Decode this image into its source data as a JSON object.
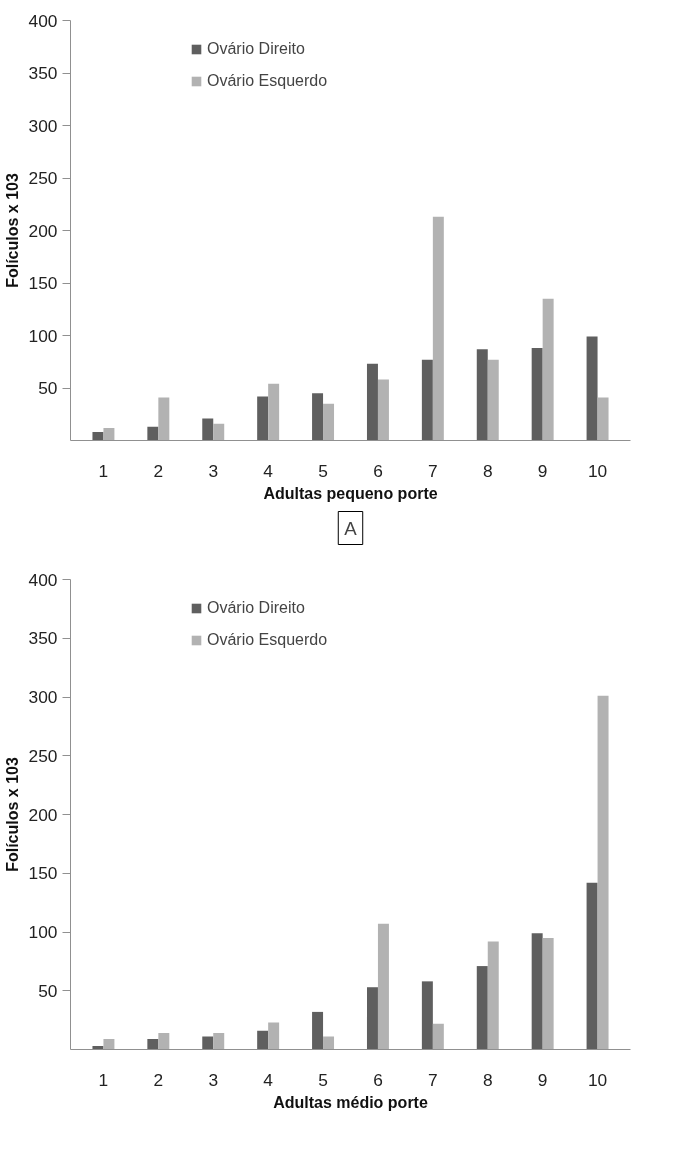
{
  "chart_data": [
    {
      "type": "bar",
      "xlabel": "Adultas pequeno porte",
      "ylabel": "Folículos x 103",
      "categories": [
        "1",
        "2",
        "3",
        "4",
        "5",
        "6",
        "7",
        "8",
        "9",
        "10"
      ],
      "series": [
        {
          "name": "Ovário Direito",
          "color": "#5f5f5f",
          "values": [
            8,
            13,
            21,
            42,
            45,
            73,
            77,
            87,
            88,
            99
          ]
        },
        {
          "name": "Ovário Esquerdo",
          "color": "#b2b2b2",
          "values": [
            12,
            41,
            16,
            54,
            35,
            58,
            213,
            77,
            135,
            41
          ]
        }
      ],
      "ylim": [
        0,
        400
      ],
      "yticks": [
        50,
        100,
        150,
        200,
        250,
        300,
        350,
        400
      ],
      "grid": false,
      "legend": "top left",
      "annotations": [
        "A"
      ]
    },
    {
      "type": "bar",
      "xlabel": "Adultas médio porte",
      "ylabel": "Folículos x 103",
      "categories": [
        "1",
        "2",
        "3",
        "4",
        "5",
        "6",
        "7",
        "8",
        "9",
        "10"
      ],
      "series": [
        {
          "name": "Ovário Direito",
          "color": "#5f5f5f",
          "values": [
            3,
            9,
            11,
            16,
            32,
            53,
            58,
            71,
            99,
            142
          ]
        },
        {
          "name": "Ovário Esquerdo",
          "color": "#b2b2b2",
          "values": [
            9,
            14,
            14,
            23,
            11,
            107,
            22,
            92,
            95,
            301
          ]
        }
      ],
      "ylim": [
        0,
        400
      ],
      "yticks": [
        50,
        100,
        150,
        200,
        250,
        300,
        350,
        400
      ],
      "grid": false,
      "legend": "top left"
    }
  ]
}
